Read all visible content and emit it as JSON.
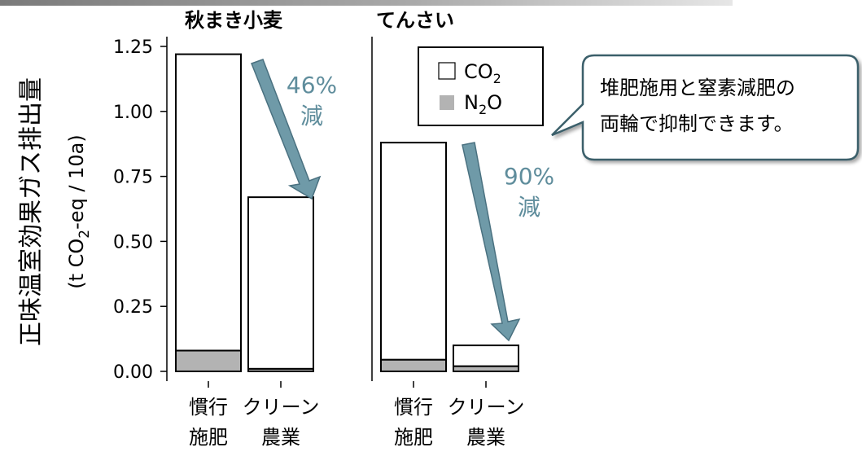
{
  "chart_data": {
    "type": "bar",
    "stacked": true,
    "ylabel_main": "正味温室効果ガス排出量",
    "ylabel_unit": {
      "pre": "(t CO",
      "sub": "2",
      "post": "-eq / 10a)"
    },
    "ylim": [
      0,
      1.25
    ],
    "yticks": [
      "0.00",
      "0.25",
      "0.50",
      "0.75",
      "1.00",
      "1.25"
    ],
    "ytick_values": [
      0,
      0.25,
      0.5,
      0.75,
      1.0,
      1.25
    ],
    "grid": false,
    "legend": {
      "position": "top-right",
      "items": [
        {
          "pre": "CO",
          "sub": "2",
          "post": "",
          "color": "#ffffff"
        },
        {
          "pre": "N",
          "sub": "2",
          "post": "O",
          "color": "#b3b3b3"
        }
      ]
    },
    "categories": [
      {
        "line1": "慣行",
        "line2": "施肥"
      },
      {
        "line1": "クリーン",
        "line2": "農業"
      }
    ],
    "panels": [
      {
        "title": "秋まき小麦",
        "series": [
          {
            "name": "N2O",
            "values": [
              0.08,
              0.01
            ]
          },
          {
            "name": "CO2",
            "values": [
              1.14,
              0.66
            ]
          }
        ],
        "totals": [
          1.22,
          0.67
        ],
        "annotation": {
          "line1": "46%",
          "line2": "減"
        }
      },
      {
        "title": "てんさい",
        "series": [
          {
            "name": "N2O",
            "values": [
              0.045,
              0.02
            ]
          },
          {
            "name": "CO2",
            "values": [
              0.835,
              0.08
            ]
          }
        ],
        "totals": [
          0.88,
          0.1
        ],
        "annotation": {
          "line1": "90%",
          "line2": "減"
        }
      }
    ],
    "colors": {
      "co2": "#ffffff",
      "n2o": "#b3b3b3",
      "arrow": "#6f9aa8",
      "arrow_stroke": "#4a7180",
      "annotation_text": "#5f8d9c"
    }
  },
  "callout": {
    "line1": "堆肥施用と窒素減肥の",
    "line2": "両輪で抑制できます。"
  }
}
